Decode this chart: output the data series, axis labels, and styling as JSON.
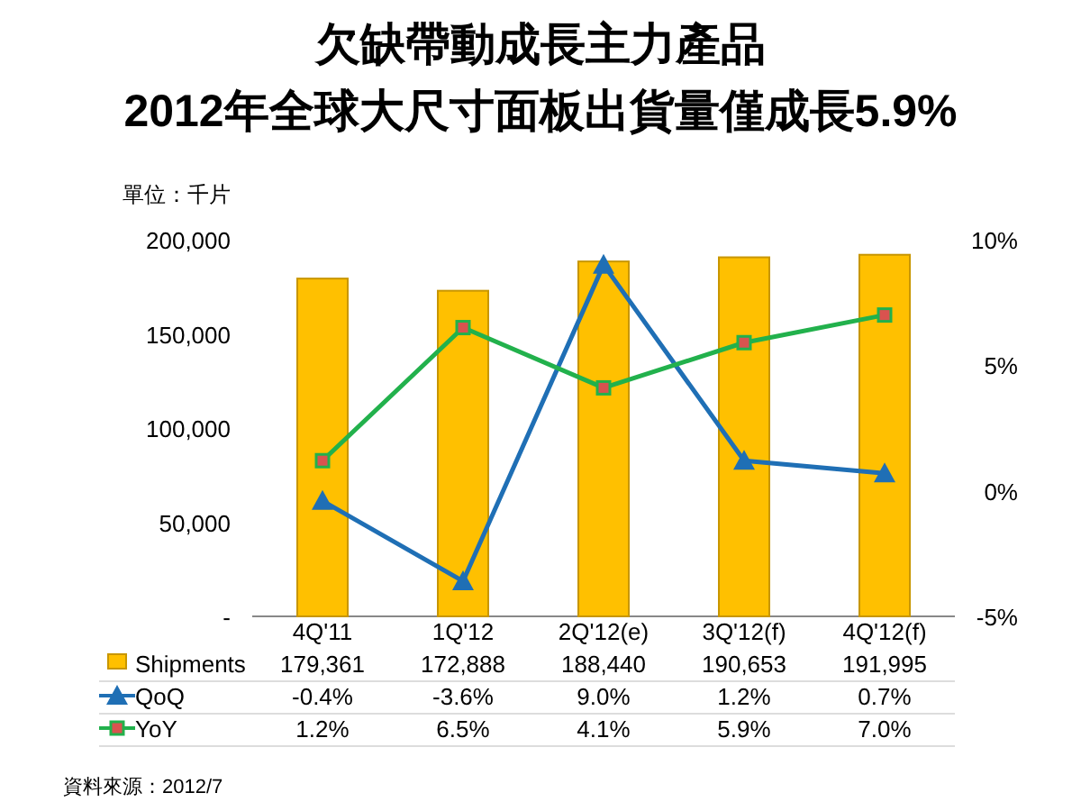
{
  "chart_data": {
    "type": "bar",
    "title": "欠缺帶動成長主力產品",
    "subtitle": "2012年全球大尺寸面板出貨量僅成長5.9%",
    "ylabel": "單位：千片",
    "categories": [
      "4Q'11",
      "1Q'12",
      "2Q'12(e)",
      "3Q'12(f)",
      "4Q'12(f)"
    ],
    "series": [
      {
        "name": "Shipments",
        "color": "#ffc000",
        "values": [
          179361,
          172888,
          188440,
          190653,
          191995
        ],
        "value_labels": [
          "179,361",
          "172,888",
          "188,440",
          "190,653",
          "191,995"
        ]
      },
      {
        "name": "QoQ",
        "type": "line",
        "axis": "y2",
        "color": "#1f6fb5",
        "marker": "triangle",
        "values": [
          -0.4,
          -3.6,
          9.0,
          1.2,
          0.7
        ],
        "value_labels": [
          "-0.4%",
          "-3.6%",
          "9.0%",
          "1.2%",
          "0.7%"
        ]
      },
      {
        "name": "YoY",
        "type": "line",
        "axis": "y2",
        "color": "#22b14c",
        "marker": "square",
        "values": [
          1.2,
          6.5,
          4.1,
          5.9,
          7.0
        ],
        "value_labels": [
          "1.2%",
          "6.5%",
          "4.1%",
          "5.9%",
          "7.0%"
        ]
      }
    ],
    "ylim": [
      0,
      200000
    ],
    "yticks": [
      {
        "value": 0,
        "label": "-"
      },
      {
        "value": 50000,
        "label": "50,000"
      },
      {
        "value": 100000,
        "label": "100,000"
      },
      {
        "value": 150000,
        "label": "150,000"
      },
      {
        "value": 200000,
        "label": "200,000"
      }
    ],
    "y2lim": [
      -5,
      10
    ],
    "y2ticks": [
      {
        "value": -5,
        "label": "-5%"
      },
      {
        "value": 0,
        "label": "0%"
      },
      {
        "value": 5,
        "label": "5%"
      },
      {
        "value": 10,
        "label": "10%"
      }
    ],
    "data_labels": true,
    "legend": "bottom",
    "grid": false,
    "annotations": [
      "資料來源：2012/7"
    ]
  }
}
